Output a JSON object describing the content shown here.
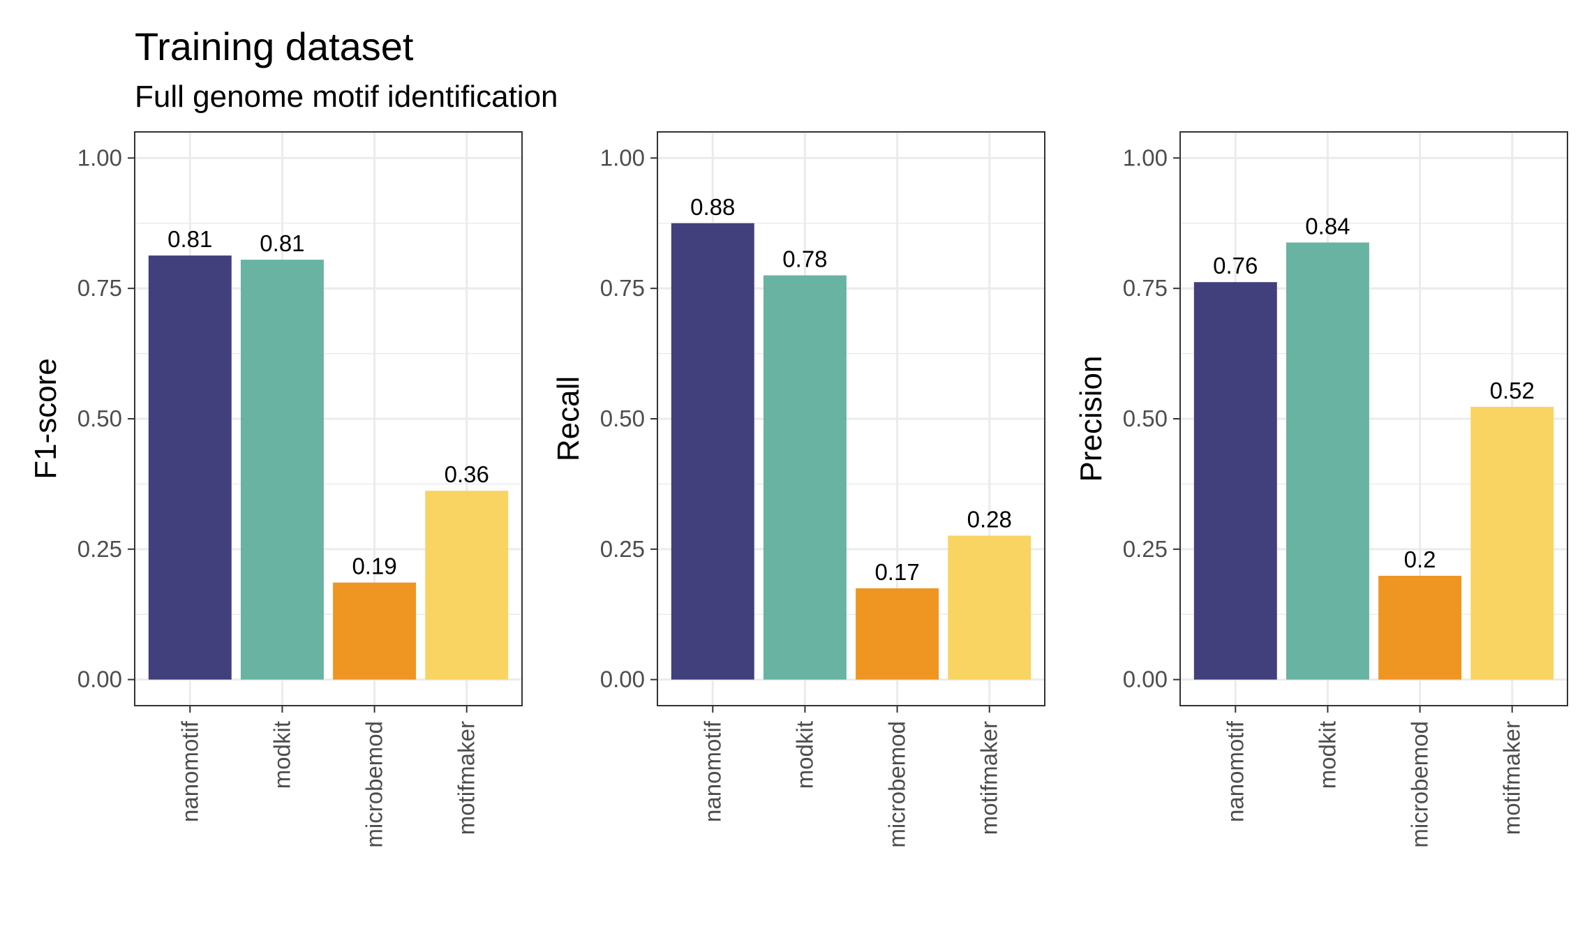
{
  "title": "Training dataset",
  "subtitle": "Full genome motif identification",
  "colors": {
    "nanomotif": "#423f7d",
    "modkit": "#69b3a2",
    "microbemod": "#ef9522",
    "motifmaker": "#f9d462"
  },
  "chart_data": [
    {
      "type": "bar",
      "ylabel": "F1-score",
      "categories": [
        "nanomotif",
        "modkit",
        "microbemod",
        "motifmaker"
      ],
      "values": [
        0.813,
        0.805,
        0.186,
        0.362
      ],
      "labels": [
        "0.81",
        "0.81",
        "0.19",
        "0.36"
      ],
      "ylim": [
        -0.05,
        1.05
      ],
      "yticks": [
        "0.00",
        "0.25",
        "0.50",
        "0.75",
        "1.00"
      ],
      "grid": true
    },
    {
      "type": "bar",
      "ylabel": "Recall",
      "categories": [
        "nanomotif",
        "modkit",
        "microbemod",
        "motifmaker"
      ],
      "values": [
        0.875,
        0.775,
        0.175,
        0.276
      ],
      "labels": [
        "0.88",
        "0.78",
        "0.17",
        "0.28"
      ],
      "ylim": [
        -0.05,
        1.05
      ],
      "yticks": [
        "0.00",
        "0.25",
        "0.50",
        "0.75",
        "1.00"
      ],
      "grid": true
    },
    {
      "type": "bar",
      "ylabel": "Precision",
      "categories": [
        "nanomotif",
        "modkit",
        "microbemod",
        "motifmaker"
      ],
      "values": [
        0.762,
        0.838,
        0.199,
        0.523
      ],
      "labels": [
        "0.76",
        "0.84",
        "0.2",
        "0.52"
      ],
      "ylim": [
        -0.05,
        1.05
      ],
      "yticks": [
        "0.00",
        "0.25",
        "0.50",
        "0.75",
        "1.00"
      ],
      "grid": true
    }
  ]
}
